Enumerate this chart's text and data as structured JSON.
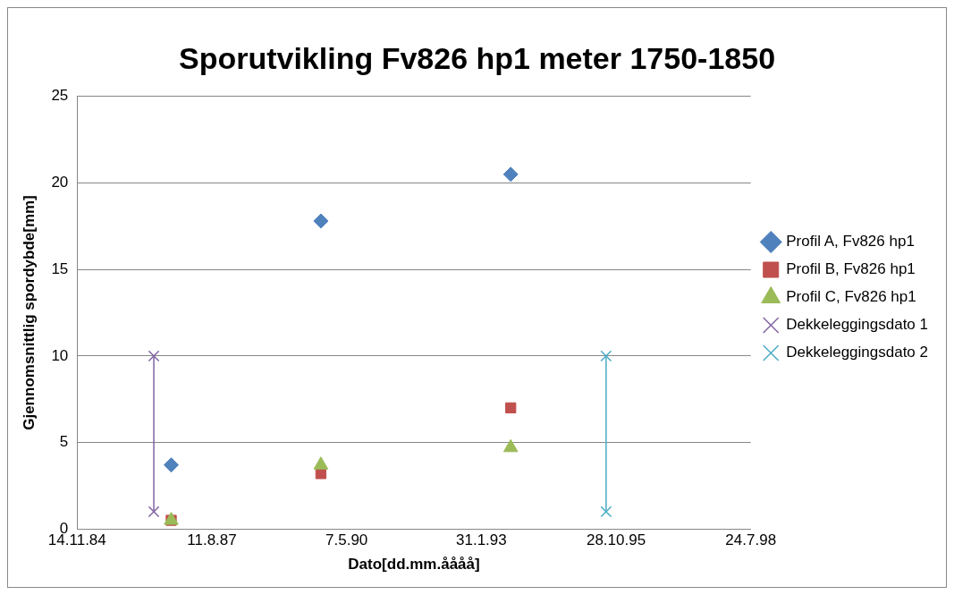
{
  "chart_data": {
    "type": "scatter",
    "title": "Sporutvikling Fv826 hp1 meter 1750-1850",
    "xlabel": "Dato[dd.mm.åååå]",
    "ylabel": "Gjennomsnittlig spordybde[mm]",
    "xlim": [
      "1984-11-14",
      "1998-07-24"
    ],
    "xticks": [
      {
        "value": "1984-11-14",
        "label": "14.11.84"
      },
      {
        "value": "1987-08-11",
        "label": "11.8.87"
      },
      {
        "value": "1990-05-07",
        "label": "7.5.90"
      },
      {
        "value": "1993-01-31",
        "label": "31.1.93"
      },
      {
        "value": "1995-10-28",
        "label": "28.10.95"
      },
      {
        "value": "1998-07-24",
        "label": "24.7.98"
      }
    ],
    "ylim": [
      0,
      25
    ],
    "yticks": [
      0,
      5,
      10,
      15,
      20,
      25
    ],
    "grid": "y",
    "legend": "right",
    "series": [
      {
        "name": "Profil A, Fv826 hp1",
        "color": "#4f81bd",
        "marker": "diamond",
        "x": [
          "1986-10-13",
          "1989-10-28",
          "1993-09-06"
        ],
        "values": [
          3.7,
          17.8,
          20.5
        ]
      },
      {
        "name": "Profil B, Fv826 hp1",
        "color": "#c0504d",
        "marker": "square",
        "x": [
          "1986-10-13",
          "1989-10-28",
          "1993-09-06"
        ],
        "values": [
          0.5,
          3.2,
          7.0
        ]
      },
      {
        "name": "Profil C, Fv826 hp1",
        "color": "#9bbb59",
        "marker": "triangle",
        "x": [
          "1986-10-13",
          "1989-10-28",
          "1993-09-06"
        ],
        "values": [
          0.5,
          3.7,
          4.7
        ]
      },
      {
        "name": "Dekkeleggingsdato 1",
        "type": "line",
        "color": "#8064a2",
        "marker": "cross",
        "x": [
          "1986-06-06",
          "1986-06-06"
        ],
        "values": [
          10,
          1
        ]
      },
      {
        "name": "Dekkeleggingsdato 2",
        "type": "line",
        "color": "#4bacc6",
        "marker": "cross",
        "x": [
          "1995-08-15",
          "1995-08-15"
        ],
        "values": [
          10,
          1
        ]
      }
    ]
  }
}
